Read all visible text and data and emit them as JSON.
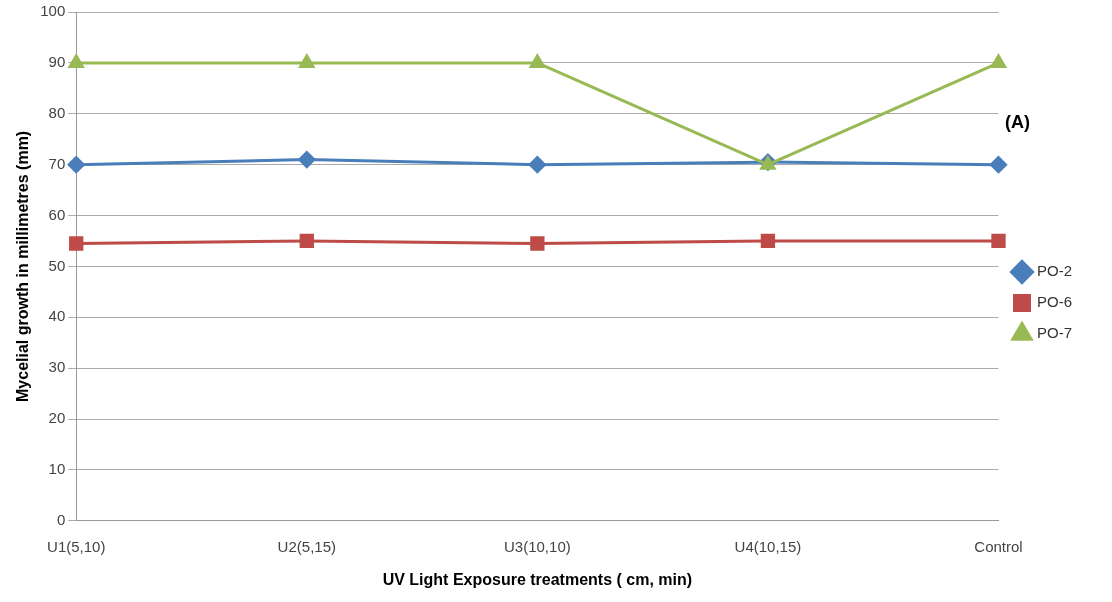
{
  "chart_data": {
    "type": "line",
    "xlabel": "UV Light Exposure treatments ( cm, min)",
    "ylabel": "Mycelial growth in millimetres (mm)",
    "categories": [
      "U1(5,10)",
      "U2(5,15)",
      "U3(10,10)",
      "U4(10,15)",
      "Control"
    ],
    "series": [
      {
        "name": "PO-2",
        "color": "#4a7ebb",
        "marker": "diamond",
        "values": [
          70,
          71,
          70,
          70.5,
          70
        ]
      },
      {
        "name": "PO-6",
        "color": "#be4b48",
        "marker": "square",
        "values": [
          54.5,
          55,
          54.5,
          55,
          55
        ]
      },
      {
        "name": "PO-7",
        "color": "#98b954",
        "marker": "triangle",
        "values": [
          90,
          90,
          90,
          70,
          90
        ]
      }
    ],
    "ylim": [
      0,
      100
    ],
    "yticks": [
      0,
      10,
      20,
      30,
      40,
      50,
      60,
      70,
      80,
      90,
      100
    ],
    "grid": "y",
    "legend": "right",
    "annotations": [
      "(A)"
    ]
  }
}
